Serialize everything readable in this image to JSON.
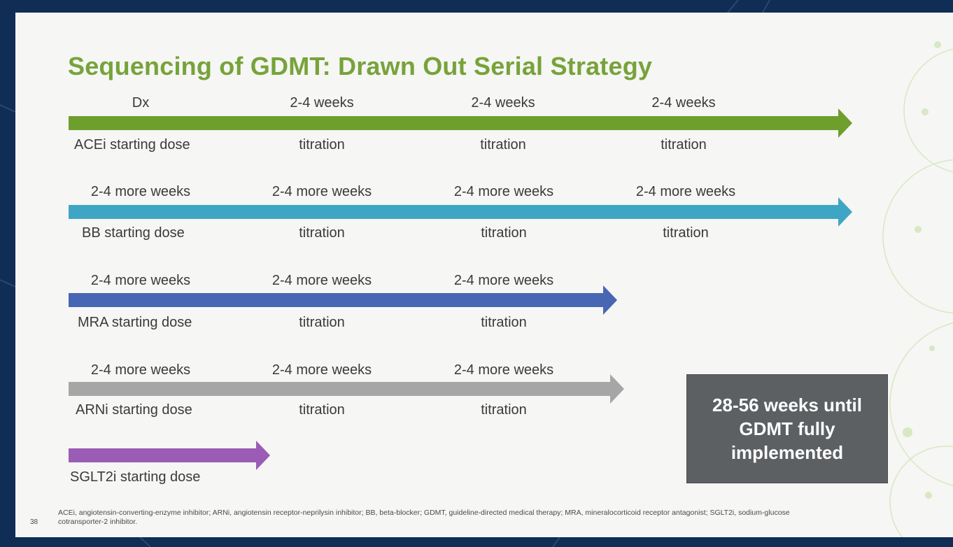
{
  "slide": {
    "title": "Sequencing of GDMT: Drawn Out Serial Strategy",
    "page_number": "38",
    "footnote": "ACEi, angiotensin-converting-enzyme inhibitor; ARNi, angiotensin receptor-neprilysin inhibitor; BB, beta-blocker; GDMT, guideline-directed medical therapy; MRA, mineralocorticoid receptor antagonist; SGLT2i, sodium-glucose cotransporter-2 inhibitor.",
    "callout": "28-56 weeks until GDMT fully implemented"
  },
  "rows": [
    {
      "id": "acei",
      "color": "#6e9e2c",
      "above": [
        "Dx",
        "2-4 weeks",
        "2-4 weeks",
        "2-4 weeks"
      ],
      "start": "ACEi  starting dose",
      "titrations": [
        "titration",
        "titration",
        "titration"
      ]
    },
    {
      "id": "bb",
      "color": "#3ea6c4",
      "above": [
        "2-4 more weeks",
        "2-4 more weeks",
        "2-4 more weeks",
        "2-4 more weeks"
      ],
      "start": "BB  starting dose",
      "titrations": [
        "titration",
        "titration",
        "titration"
      ]
    },
    {
      "id": "mra",
      "color": "#4766b4",
      "above": [
        "2-4 more weeks",
        "2-4 more weeks",
        "2-4 more weeks"
      ],
      "start": "MRA starting dose",
      "titrations": [
        "titration",
        "titration"
      ]
    },
    {
      "id": "arni",
      "color": "#a6a6a6",
      "above": [
        "2-4 more weeks",
        "2-4 more weeks",
        "2-4 more weeks"
      ],
      "start": "ARNi starting dose",
      "titrations": [
        "titration",
        "titration"
      ]
    },
    {
      "id": "sglt2i",
      "color": "#9b5cb6",
      "above": [],
      "start": "SGLT2i  starting dose",
      "titrations": []
    }
  ]
}
